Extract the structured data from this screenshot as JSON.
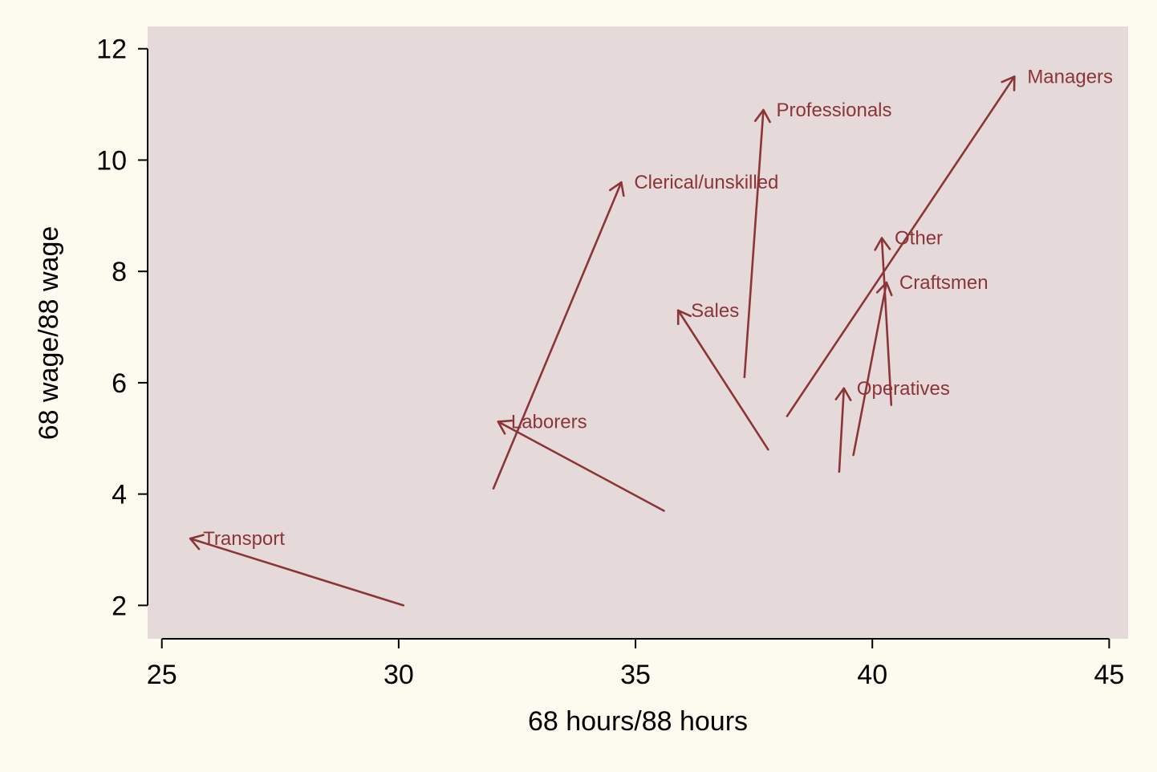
{
  "chart_data": {
    "type": "arrow-scatter",
    "xlabel": "68 hours/88 hours",
    "ylabel": "68 wage/88 wage",
    "xlim": [
      24.7,
      45.4
    ],
    "ylim": [
      1.4,
      12.4
    ],
    "xticks": [
      25,
      30,
      35,
      40,
      45
    ],
    "yticks": [
      2,
      4,
      6,
      8,
      10,
      12
    ],
    "grid": false,
    "colors": {
      "plot_background": "#e5d9d9",
      "page_background": "#fdfaf0",
      "arrow": "#8c3539"
    },
    "series": [
      {
        "name": "Transport",
        "x0": 30.1,
        "y0": 2.0,
        "x1": 25.6,
        "y1": 3.2
      },
      {
        "name": "Laborers",
        "x0": 35.6,
        "y0": 3.7,
        "x1": 32.1,
        "y1": 5.3
      },
      {
        "name": "Clerical/unskilled",
        "x0": 32.0,
        "y0": 4.1,
        "x1": 34.7,
        "y1": 9.6
      },
      {
        "name": "Sales",
        "x0": 37.8,
        "y0": 4.8,
        "x1": 35.9,
        "y1": 7.3
      },
      {
        "name": "Professionals",
        "x0": 37.3,
        "y0": 6.1,
        "x1": 37.7,
        "y1": 10.9
      },
      {
        "name": "Managers",
        "x0": 38.2,
        "y0": 5.4,
        "x1": 43.0,
        "y1": 11.5
      },
      {
        "name": "Other",
        "x0": 40.4,
        "y0": 5.6,
        "x1": 40.2,
        "y1": 8.6
      },
      {
        "name": "Craftsmen",
        "x0": 39.6,
        "y0": 4.7,
        "x1": 40.3,
        "y1": 7.8
      },
      {
        "name": "Operatives",
        "x0": 39.3,
        "y0": 4.4,
        "x1": 39.4,
        "y1": 5.9
      }
    ]
  }
}
